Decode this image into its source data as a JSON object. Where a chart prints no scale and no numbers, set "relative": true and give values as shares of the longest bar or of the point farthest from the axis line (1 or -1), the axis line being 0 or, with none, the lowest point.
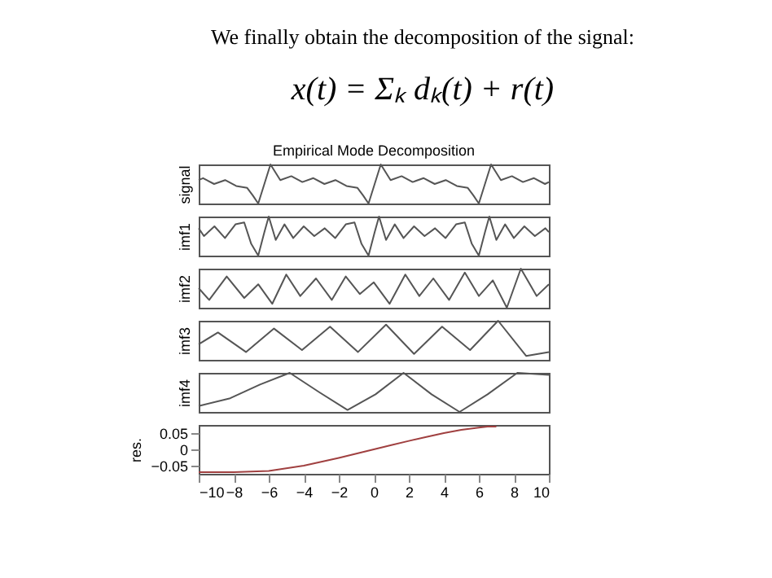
{
  "chart_data": [
    {
      "type": "other",
      "annotations": [
        "We finally obtain the decomposition of the signal:",
        "x(t) = Σₖ dₖ(t) + r(t)"
      ]
    },
    {
      "type": "line",
      "title": "Empirical Mode Decomposition",
      "ylabel": "signal",
      "relative": true,
      "xlim": [
        -10,
        10
      ],
      "tick_labels": false,
      "series": [
        {
          "color": "#555555",
          "x": [
            -10,
            -9.75,
            -9.12,
            -8.49,
            -7.86,
            -7.23,
            -6.9,
            -6.6,
            -6.25,
            -5.9,
            -5.34,
            -4.71,
            -4.08,
            -3.45,
            -2.82,
            -2.19,
            -1.56,
            -0.93,
            -0.6,
            -0.3,
            0.05,
            0.4,
            0.96,
            1.59,
            2.22,
            2.85,
            3.48,
            4.11,
            4.74,
            5.37,
            5.7,
            6.0,
            6.35,
            6.7,
            7.26,
            7.89,
            8.52,
            9.15,
            9.78,
            10
          ],
          "values": [
            0.6,
            0.65,
            0.5,
            0.6,
            0.45,
            0.4,
            0.2,
            0,
            0.5,
            1,
            0.6,
            0.7,
            0.55,
            0.65,
            0.5,
            0.6,
            0.45,
            0.4,
            0.2,
            0,
            0.5,
            1,
            0.6,
            0.7,
            0.55,
            0.65,
            0.5,
            0.6,
            0.45,
            0.4,
            0.2,
            0,
            0.5,
            1,
            0.6,
            0.7,
            0.55,
            0.65,
            0.5,
            0.55
          ]
        }
      ]
    },
    {
      "type": "line",
      "ylabel": "imf1",
      "relative": true,
      "xlim": [
        -10,
        10
      ],
      "tick_labels": false,
      "series": [
        {
          "color": "#555555",
          "x": [
            -10,
            -9.7,
            -9.1,
            -8.5,
            -7.9,
            -7.4,
            -7.0,
            -6.6,
            -6.25,
            -6.0,
            -5.6,
            -5.1,
            -4.6,
            -4.0,
            -3.4,
            -2.8,
            -2.2,
            -1.6,
            -1.1,
            -0.7,
            -0.3,
            0.05,
            0.3,
            0.7,
            1.2,
            1.7,
            2.3,
            2.9,
            3.5,
            4.1,
            4.7,
            5.2,
            5.6,
            6.0,
            6.35,
            6.6,
            7.0,
            7.5,
            8.0,
            8.6,
            9.2,
            9.8,
            10
          ],
          "values": [
            0.7,
            0.5,
            0.75,
            0.45,
            0.8,
            0.85,
            0.3,
            0,
            0.6,
            1,
            0.4,
            0.8,
            0.45,
            0.75,
            0.5,
            0.7,
            0.45,
            0.8,
            0.85,
            0.3,
            0,
            0.6,
            1,
            0.4,
            0.8,
            0.45,
            0.75,
            0.5,
            0.7,
            0.45,
            0.8,
            0.85,
            0.3,
            0,
            0.6,
            1,
            0.4,
            0.8,
            0.45,
            0.75,
            0.5,
            0.7,
            0.6
          ]
        }
      ]
    },
    {
      "type": "line",
      "ylabel": "imf2",
      "relative": true,
      "xlim": [
        -10,
        10
      ],
      "tick_labels": false,
      "series": [
        {
          "color": "#555555",
          "x": [
            -10,
            -9.4,
            -8.4,
            -7.4,
            -6.6,
            -5.8,
            -5.0,
            -4.2,
            -3.3,
            -2.4,
            -1.6,
            -0.8,
            0,
            0.9,
            1.8,
            2.6,
            3.4,
            4.3,
            5.2,
            6.0,
            6.8,
            7.6,
            8.4,
            9.3,
            10
          ],
          "values": [
            0.5,
            0.2,
            0.8,
            0.25,
            0.6,
            0.1,
            0.85,
            0.3,
            0.75,
            0.2,
            0.8,
            0.35,
            0.65,
            0.1,
            0.85,
            0.3,
            0.75,
            0.2,
            0.9,
            0.3,
            0.7,
            0.0,
            1.0,
            0.3,
            0.6
          ]
        }
      ]
    },
    {
      "type": "line",
      "ylabel": "imf3",
      "relative": true,
      "xlim": [
        -10,
        10
      ],
      "tick_labels": false,
      "series": [
        {
          "color": "#555555",
          "x": [
            -10,
            -8.9,
            -7.3,
            -5.7,
            -4.1,
            -2.5,
            -0.9,
            0.7,
            2.3,
            3.9,
            5.5,
            7.1,
            8.7,
            10
          ],
          "values": [
            0.4,
            0.7,
            0.2,
            0.8,
            0.25,
            0.85,
            0.2,
            0.9,
            0.15,
            0.85,
            0.25,
            1.0,
            0.1,
            0.2
          ]
        }
      ]
    },
    {
      "type": "line",
      "ylabel": "imf4",
      "relative": true,
      "xlim": [
        -10,
        10
      ],
      "tick_labels": false,
      "series": [
        {
          "color": "#555555",
          "x": [
            -10,
            -8.2,
            -6.5,
            -4.8,
            -3.1,
            -1.5,
            0.1,
            1.7,
            3.3,
            4.9,
            6.5,
            8.2,
            10
          ],
          "values": [
            0.15,
            0.35,
            0.7,
            1,
            0.5,
            0.05,
            0.45,
            1,
            0.45,
            0.0,
            0.45,
            1,
            0.95
          ]
        }
      ]
    },
    {
      "type": "line",
      "ylabel": "res.",
      "xlim": [
        -10,
        10
      ],
      "xticks": [
        -10,
        -8,
        -6,
        -4,
        -2,
        0,
        2,
        4,
        6,
        8,
        10
      ],
      "ylim": [
        -0.075,
        0.075
      ],
      "yticks": [
        -0.05,
        0,
        0.05
      ],
      "tick_labels": "xy",
      "series": [
        {
          "color": "#a04040",
          "x": [
            -10,
            -8,
            -6,
            -5,
            -4,
            -3,
            -2,
            -1,
            0,
            1,
            2,
            3,
            4,
            5,
            6,
            6.5,
            7
          ],
          "values": [
            -0.07,
            -0.07,
            -0.066,
            -0.058,
            -0.05,
            -0.038,
            -0.026,
            -0.013,
            0,
            0.013,
            0.026,
            0.038,
            0.05,
            0.06,
            0.067,
            0.07,
            0.07
          ]
        }
      ]
    }
  ]
}
